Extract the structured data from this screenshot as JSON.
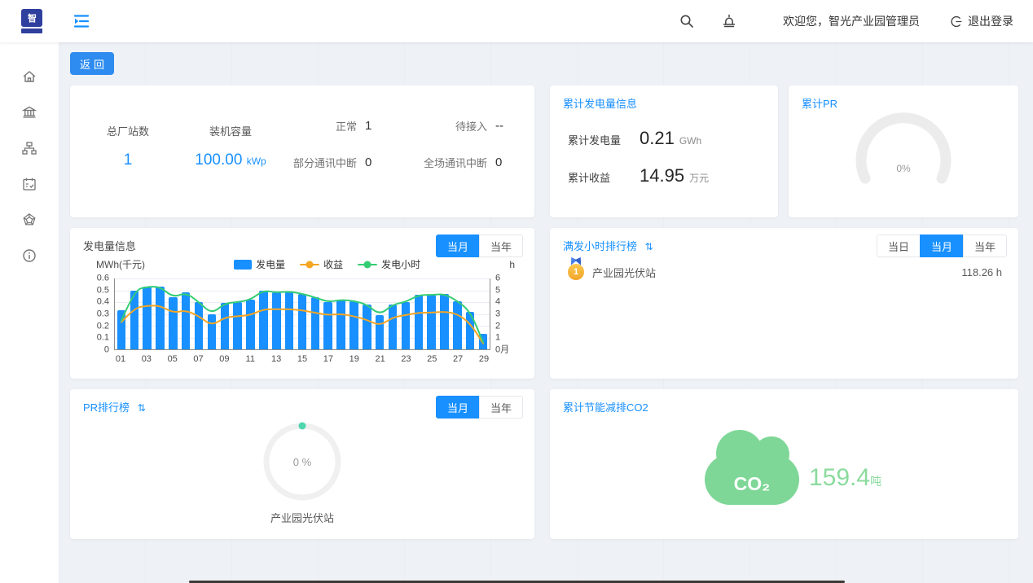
{
  "topbar": {
    "welcome": "欢迎您，智光产业园管理员",
    "logout_label": "退出登录"
  },
  "icons": {
    "sort_glyph": "⇅"
  },
  "back_button_label": "返回",
  "overview": {
    "total_stations_label": "总厂站数",
    "total_stations_value": "1",
    "capacity_label": "装机容量",
    "capacity_value": "100.00",
    "capacity_unit": "kWp",
    "statuses": [
      {
        "label": "正常",
        "value": "1"
      },
      {
        "label": "待接入",
        "value": "--"
      },
      {
        "label": "部分通讯中断",
        "value": "0"
      },
      {
        "label": "全场通讯中断",
        "value": "0"
      }
    ]
  },
  "cumulative_generation": {
    "title": "累计发电量信息",
    "rows": [
      {
        "label": "累计发电量",
        "value": "0.21",
        "unit": "GWh"
      },
      {
        "label": "累计收益",
        "value": "14.95",
        "unit": "万元"
      }
    ]
  },
  "cumulative_pr": {
    "title": "累计PR",
    "value": "0%"
  },
  "generation_chart": {
    "title": "发电量信息",
    "tabs": [
      "当月",
      "当年"
    ],
    "active_tab": "当月"
  },
  "chart_data": {
    "type": "bar+line",
    "title": "发电量信息",
    "x": [
      "01",
      "02",
      "03",
      "04",
      "05",
      "06",
      "07",
      "08",
      "09",
      "10",
      "11",
      "12",
      "13",
      "14",
      "15",
      "16",
      "17",
      "18",
      "19",
      "20",
      "21",
      "22",
      "23",
      "24",
      "25",
      "26",
      "27",
      "28",
      "29"
    ],
    "x_label_every": 2,
    "x_unit": "月",
    "series": [
      {
        "name": "发电量",
        "type": "bar",
        "axis": "left",
        "color": "#1890ff",
        "values": [
          0.33,
          0.5,
          0.53,
          0.53,
          0.44,
          0.48,
          0.4,
          0.3,
          0.39,
          0.4,
          0.42,
          0.5,
          0.48,
          0.49,
          0.47,
          0.44,
          0.4,
          0.42,
          0.41,
          0.38,
          0.29,
          0.38,
          0.4,
          0.46,
          0.46,
          0.47,
          0.41,
          0.32,
          0.13
        ]
      },
      {
        "name": "收益",
        "type": "line",
        "axis": "left",
        "color": "#f5a623",
        "values": [
          0.23,
          0.35,
          0.37,
          0.37,
          0.31,
          0.33,
          0.28,
          0.2,
          0.27,
          0.28,
          0.29,
          0.34,
          0.34,
          0.34,
          0.33,
          0.31,
          0.29,
          0.3,
          0.28,
          0.25,
          0.2,
          0.27,
          0.29,
          0.31,
          0.31,
          0.32,
          0.3,
          0.22,
          0.05
        ]
      },
      {
        "name": "发电小时",
        "type": "line",
        "axis": "right",
        "color": "#35cd74",
        "values": [
          2.4,
          5.0,
          5.3,
          5.3,
          4.4,
          4.8,
          4.0,
          3.0,
          3.9,
          4.0,
          4.2,
          5.0,
          4.8,
          4.9,
          4.7,
          4.4,
          4.0,
          4.2,
          4.1,
          3.8,
          2.9,
          3.8,
          4.0,
          4.6,
          4.6,
          4.7,
          4.1,
          3.2,
          0.6
        ]
      }
    ],
    "left_axis": {
      "name": "MWh(千元)",
      "min": 0,
      "max": 0.6,
      "labels": [
        "0.6",
        "0.5",
        "0.4",
        "0.3",
        "0.2",
        "0.1",
        "0"
      ]
    },
    "right_axis": {
      "name": "h",
      "min": 0,
      "max": 6,
      "labels": [
        "6",
        "5",
        "4",
        "3",
        "2",
        "1",
        "0月"
      ]
    },
    "legend_position": "top",
    "grid": true
  },
  "full_hours_ranking": {
    "title": "满发小时排行榜",
    "tabs": [
      "当日",
      "当月",
      "当年"
    ],
    "active_tab": "当月",
    "items": [
      {
        "rank": "1",
        "name": "产业园光伏站",
        "value": "118.26 h"
      }
    ]
  },
  "pr_ranking": {
    "title": "PR排行榜",
    "tabs": [
      "当月",
      "当年"
    ],
    "active_tab": "当月",
    "value": "0 %",
    "station": "产业园光伏站"
  },
  "co2": {
    "title": "累计节能减排CO2",
    "cloud_label": "CO₂",
    "value": "159.4",
    "unit": "吨"
  },
  "colors": {
    "accent": "#1890ff",
    "bar": "#1890ff",
    "income_line": "#f5a623",
    "hours_line": "#35cd74",
    "co2_green": "#7ed796",
    "gauge_track": "#ececec",
    "donut_dot": "#4fd6ae"
  }
}
